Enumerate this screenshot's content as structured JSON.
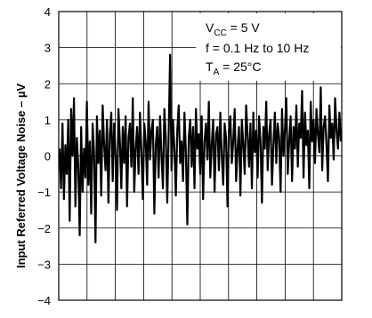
{
  "chart_data": {
    "type": "line",
    "title": "",
    "xlabel": "",
    "ylabel": "Input Referred Voltage Noise – µV",
    "ylim": [
      -4,
      4
    ],
    "yticks": [
      "4",
      "3",
      "2",
      "1",
      "0",
      "−1",
      "−2",
      "−3",
      "−4"
    ],
    "xlim": [
      0,
      10
    ],
    "x_gridlines": 10,
    "grid": true,
    "conditions": [
      {
        "main": "V",
        "sub": "CC",
        "rest": " = 5 V"
      },
      {
        "main": "f = 0.1 Hz to 10 Hz",
        "sub": "",
        "rest": ""
      },
      {
        "main": "T",
        "sub": "A",
        "rest": " = 25°C"
      }
    ],
    "legend_position": "top-right",
    "series": [
      {
        "values": [
          0.2,
          -0.9,
          0.9,
          -1.2,
          0.3,
          -0.5,
          1.0,
          -1.8,
          1.3,
          0.0,
          1.6,
          -1.4,
          0.5,
          -0.3,
          -2.2,
          0.8,
          -1.0,
          0.2,
          -0.6,
          1.5,
          -0.8,
          0.4,
          -1.6,
          0.9,
          0.1,
          -2.4,
          1.1,
          -0.2,
          0.7,
          -1.1,
          1.4,
          0.3,
          -0.4,
          1.0,
          -1.3,
          0.6,
          1.2,
          -0.7,
          0.9,
          0.0,
          -1.5,
          1.3,
          0.4,
          -0.9,
          0.8,
          -0.2,
          1.1,
          -1.4,
          0.5,
          0.9,
          -0.3,
          1.6,
          -1.0,
          0.2,
          0.8,
          -0.5,
          1.2,
          0.1,
          -1.2,
          0.9,
          0.4,
          -0.8,
          1.5,
          -0.1,
          0.7,
          1.0,
          -1.6,
          0.3,
          0.8,
          -0.6,
          1.1,
          0.0,
          -0.9,
          1.3,
          0.5,
          -1.3,
          0.6,
          2.8,
          -0.4,
          1.0,
          0.2,
          -1.1,
          0.7,
          1.4,
          -0.2,
          0.4,
          -0.7,
          1.2,
          0.1,
          -1.9,
          0.5,
          1.0,
          -0.3,
          0.8,
          -0.9,
          1.3,
          0.2,
          0.6,
          -0.5,
          1.1,
          -1.2,
          0.4,
          0.9,
          -0.1,
          1.5,
          -0.6,
          0.3,
          1.0,
          -1.0,
          0.6,
          0.8,
          -0.4,
          1.2,
          0.0,
          -0.8,
          0.9,
          0.5,
          -1.4,
          0.7,
          1.1,
          -0.2,
          0.4,
          1.3,
          -0.7,
          0.2,
          0.8,
          -1.1,
          1.0,
          0.3,
          -0.5,
          1.4,
          0.6,
          -0.3,
          0.9,
          -0.9,
          1.2,
          0.1,
          0.7,
          -0.6,
          1.1,
          0.4,
          -1.3,
          0.8,
          0.2,
          1.5,
          -0.4,
          0.6,
          1.0,
          -0.8,
          0.3,
          1.2,
          -0.2,
          0.9,
          0.5,
          -1.0,
          1.3,
          0.0,
          0.7,
          1.6,
          -0.5,
          0.4,
          1.1,
          -0.7,
          0.8,
          0.2,
          1.4,
          -0.3,
          0.9,
          0.5,
          1.8,
          -0.6,
          1.2,
          0.3,
          0.7,
          -0.9,
          1.5,
          0.4,
          1.0,
          -0.2,
          1.3,
          0.6,
          0.1,
          1.9,
          -0.4,
          0.8,
          1.1,
          0.3,
          -0.7,
          1.4,
          0.5,
          0.9,
          -0.1,
          1.6,
          0.7,
          0.2,
          1.2,
          0.4
        ],
        "color": "#000000"
      }
    ]
  }
}
